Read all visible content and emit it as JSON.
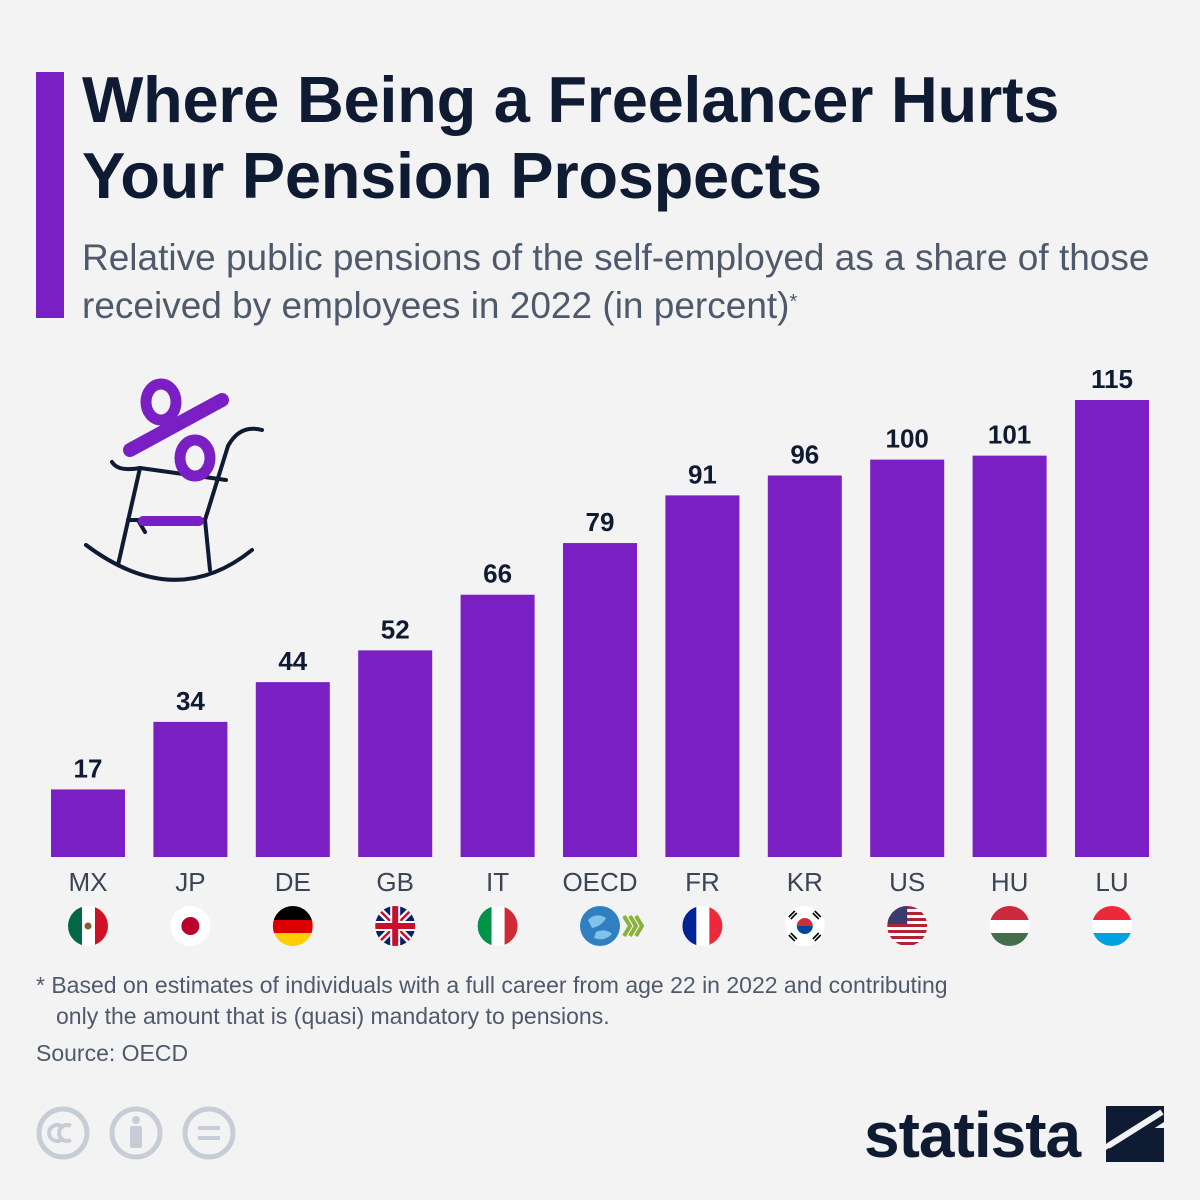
{
  "header": {
    "title": "Where Being a Freelancer Hurts Your Pension Prospects",
    "subtitle": "Relative public pensions of the self-employed as a share of those received by employees in 2022 (in percent)",
    "subtitle_marker": "*"
  },
  "chart_data": {
    "type": "bar",
    "categories": [
      "MX",
      "JP",
      "DE",
      "GB",
      "IT",
      "OECD",
      "FR",
      "KR",
      "US",
      "HU",
      "LU"
    ],
    "values": [
      17,
      34,
      44,
      52,
      66,
      79,
      91,
      96,
      100,
      101,
      115
    ],
    "ylim": [
      0,
      115
    ],
    "grid": false,
    "bar_color": "#7a1fc4",
    "value_labels": true,
    "category_icons": [
      "flag-mexico-icon",
      "flag-japan-icon",
      "flag-germany-icon",
      "flag-uk-icon",
      "flag-italy-icon",
      "oecd-logo-icon",
      "flag-france-icon",
      "flag-korea-icon",
      "flag-usa-icon",
      "flag-hungary-icon",
      "flag-luxembourg-icon"
    ]
  },
  "illustration": {
    "icon": "rocking-chair-percent-icon"
  },
  "footer": {
    "footnote_line1": "* Based on estimates of individuals with a full career from age 22 in 2022 and contributing",
    "footnote_line2": "only the amount that is (quasi) mandatory to pensions.",
    "source": "Source: OECD",
    "brand": "statista",
    "license_icons": [
      "cc-icon",
      "attribution-icon",
      "no-derivatives-icon"
    ]
  },
  "colors": {
    "accent": "#7a1fc4",
    "title": "#0f1b32",
    "text": "#4e5a6c",
    "background": "#f3f3f3"
  }
}
